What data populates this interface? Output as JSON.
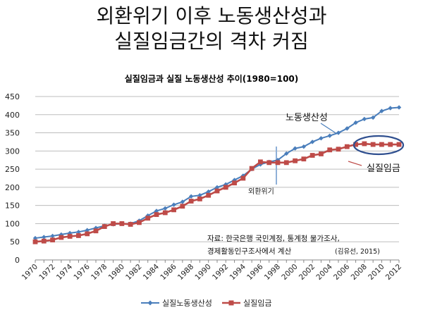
{
  "slide": {
    "title_line1": "외환위기 이후 노동생산성과",
    "title_line2": "실질임금간의 격차 커짐"
  },
  "chart_data": {
    "type": "line",
    "title": "실질임금과 실질 노동생산성 추이(1980=100)",
    "ylim": [
      0,
      450
    ],
    "y_ticks": [
      0,
      50,
      100,
      150,
      200,
      250,
      300,
      350,
      400,
      450
    ],
    "x_tick_labels": [
      "1970",
      "1972",
      "1974",
      "1976",
      "1978",
      "1980",
      "1982",
      "1984",
      "1986",
      "1988",
      "1990",
      "1992",
      "1994",
      "1996",
      "1998",
      "2000",
      "2002",
      "2004",
      "2006",
      "2008",
      "2010",
      "2012"
    ],
    "x": [
      1970,
      1971,
      1972,
      1973,
      1974,
      1975,
      1976,
      1977,
      1978,
      1979,
      1980,
      1981,
      1982,
      1983,
      1984,
      1985,
      1986,
      1987,
      1988,
      1989,
      1990,
      1991,
      1992,
      1993,
      1994,
      1995,
      1996,
      1997,
      1998,
      1999,
      2000,
      2001,
      2002,
      2003,
      2004,
      2005,
      2006,
      2007,
      2008,
      2009,
      2010,
      2011,
      2012
    ],
    "grid": true,
    "legend_position": "bottom",
    "series": [
      {
        "name": "실질노동생산성",
        "color": "#4a7ebb",
        "marker": "diamond",
        "values": [
          60,
          63,
          66,
          70,
          74,
          77,
          82,
          88,
          94,
          98,
          100,
          100,
          108,
          122,
          135,
          142,
          152,
          160,
          175,
          178,
          188,
          200,
          208,
          220,
          232,
          250,
          263,
          270,
          275,
          293,
          307,
          312,
          325,
          335,
          342,
          350,
          362,
          378,
          388,
          392,
          410,
          418,
          420
        ]
      },
      {
        "name": "실질임금",
        "color": "#be4b48",
        "marker": "square",
        "values": [
          50,
          52,
          55,
          62,
          65,
          67,
          72,
          80,
          92,
          100,
          100,
          98,
          103,
          115,
          125,
          130,
          138,
          148,
          162,
          168,
          178,
          190,
          200,
          212,
          225,
          252,
          270,
          268,
          268,
          268,
          273,
          278,
          288,
          292,
          303,
          305,
          312,
          318,
          320,
          318,
          318,
          318,
          318
        ]
      }
    ],
    "annotations": {
      "productivity_label": "노동생산성",
      "wage_label": "실질임금",
      "crisis_label": "외환위기",
      "source_line1": "자료: 한국은행 국민계정, 통계청 물가조사,",
      "source_line2": "경제활동인구조사에서 계산",
      "source_citation": "(김유선, 2015)"
    }
  }
}
